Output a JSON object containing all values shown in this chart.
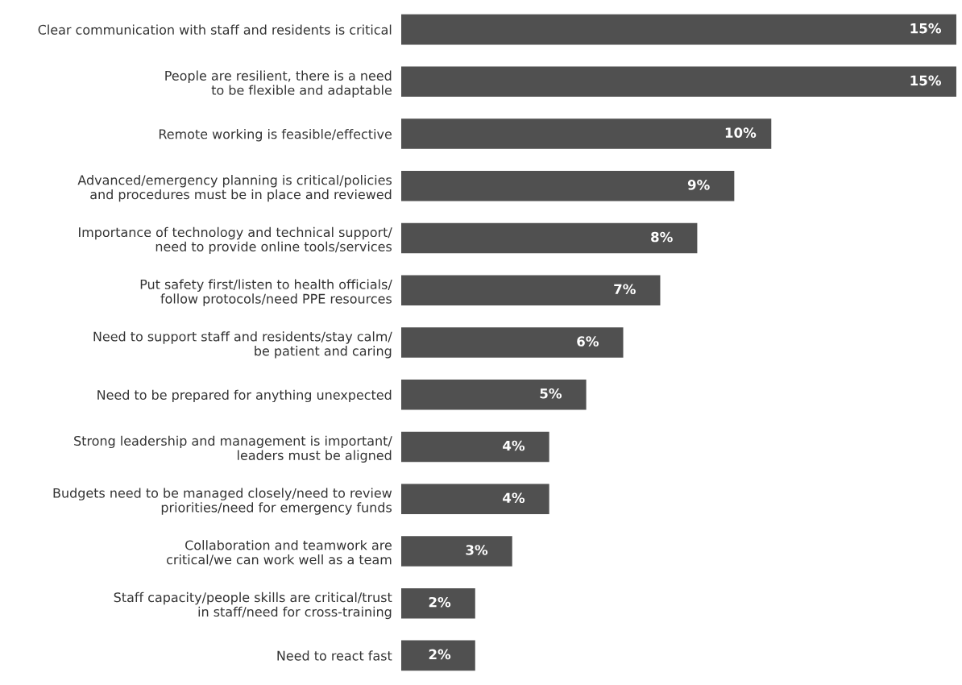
{
  "chart_data": {
    "type": "bar",
    "orientation": "horizontal",
    "tick_labels": "y",
    "color": "#505050",
    "value_labels": [
      "15%",
      "15%",
      "10%",
      "9%",
      "8%",
      "7%",
      "6%",
      "5%",
      "4%",
      "4%",
      "3%",
      "2%",
      "2%"
    ],
    "categories": [
      "Clear communication with staff and residents is critical",
      "People are resilient, there is a need\nto be flexible and adaptable",
      "Remote working is feasible/effective",
      "Advanced/emergency planning is critical/policies\nand procedures must be in place and reviewed",
      "Importance of technology and technical support/\nneed to provide online tools/services",
      "Put safety first/listen to health officials/\nfollow protocols/need PPE resources",
      "Need to support staff and residents/stay calm/\nbe patient and caring",
      "Need to be prepared for anything unexpected",
      "Strong leadership and management is important/\nleaders must be aligned",
      "Budgets need to be managed closely/need to review\npriorities/need for emergency funds",
      "Collaboration and teamwork are\ncritical/we can work well as a team",
      "Staff capacity/people skills are critical/trust\nin staff/need for cross-training",
      "Need to react fast"
    ],
    "values": [
      15,
      15,
      10,
      9,
      8,
      7,
      6,
      5,
      4,
      4,
      3,
      2,
      2
    ]
  }
}
